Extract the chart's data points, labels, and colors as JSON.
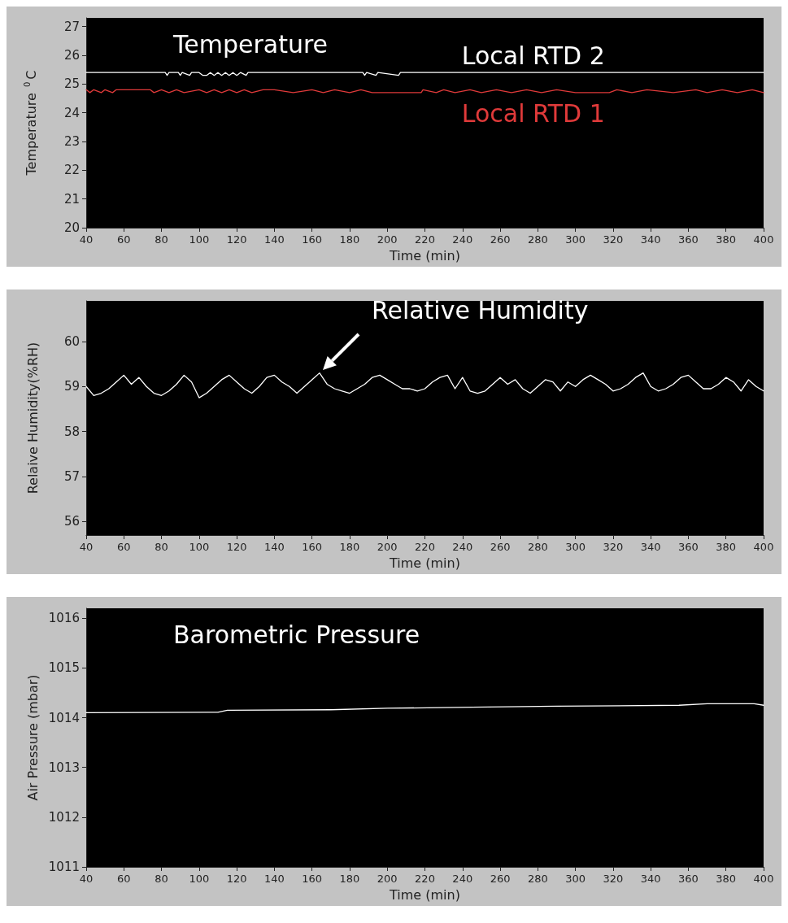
{
  "chart_data": [
    {
      "type": "line",
      "title": "Temperature",
      "xlabel": "Time (min)",
      "ylabel": "Temperature $^{0}$C",
      "xlim": [
        40,
        400
      ],
      "xticks": [
        40,
        60,
        80,
        100,
        120,
        140,
        160,
        180,
        200,
        220,
        240,
        260,
        280,
        300,
        320,
        340,
        360,
        380,
        400
      ],
      "ylim": [
        20,
        27.3
      ],
      "yticks": [
        20,
        21,
        22,
        23,
        24,
        25,
        26,
        27
      ],
      "grid": false,
      "legend": false,
      "series": [
        {
          "name": "Local RTD 2",
          "color": "#ffffff",
          "x": [
            40,
            82,
            83,
            84,
            89,
            90,
            91,
            95,
            96,
            100,
            102,
            104,
            106,
            108,
            110,
            112,
            114,
            116,
            118,
            120,
            122,
            125,
            126,
            187,
            188,
            189,
            194,
            195,
            206,
            207,
            400
          ],
          "values": [
            25.4,
            25.4,
            25.3,
            25.4,
            25.4,
            25.3,
            25.4,
            25.3,
            25.4,
            25.4,
            25.3,
            25.3,
            25.4,
            25.3,
            25.4,
            25.3,
            25.4,
            25.3,
            25.4,
            25.3,
            25.4,
            25.3,
            25.4,
            25.4,
            25.3,
            25.4,
            25.3,
            25.4,
            25.3,
            25.4,
            25.4
          ]
        },
        {
          "name": "Local RTD 1",
          "color": "#e03a3a",
          "x": [
            40,
            42,
            44,
            48,
            50,
            54,
            56,
            74,
            76,
            80,
            84,
            88,
            92,
            100,
            104,
            108,
            112,
            116,
            120,
            124,
            128,
            134,
            140,
            150,
            160,
            166,
            172,
            180,
            186,
            192,
            197,
            218,
            219,
            226,
            230,
            236,
            244,
            250,
            258,
            266,
            274,
            282,
            290,
            300,
            306,
            318,
            322,
            330,
            338,
            352,
            364,
            370,
            378,
            386,
            394,
            400
          ],
          "values": [
            24.8,
            24.7,
            24.8,
            24.7,
            24.8,
            24.7,
            24.8,
            24.8,
            24.7,
            24.8,
            24.7,
            24.8,
            24.7,
            24.8,
            24.7,
            24.8,
            24.7,
            24.8,
            24.7,
            24.8,
            24.7,
            24.8,
            24.8,
            24.7,
            24.8,
            24.7,
            24.8,
            24.7,
            24.8,
            24.7,
            24.7,
            24.7,
            24.8,
            24.7,
            24.8,
            24.7,
            24.8,
            24.7,
            24.8,
            24.7,
            24.8,
            24.7,
            24.8,
            24.7,
            24.7,
            24.7,
            24.8,
            24.7,
            24.8,
            24.7,
            24.8,
            24.7,
            24.8,
            24.7,
            24.8,
            24.7
          ]
        }
      ]
    },
    {
      "type": "line",
      "xlabel": "Time (min)",
      "ylabel": "Relaive Humidity(%RH)",
      "xlim": [
        40,
        400
      ],
      "xticks": [
        40,
        60,
        80,
        100,
        120,
        140,
        160,
        180,
        200,
        220,
        240,
        260,
        280,
        300,
        320,
        340,
        360,
        380,
        400
      ],
      "ylim": [
        55.7,
        60.9
      ],
      "yticks": [
        56,
        57,
        58,
        59,
        60
      ],
      "grid": false,
      "legend": false,
      "annotations": [
        {
          "text": "Relative Humidity",
          "x": 164,
          "y": 59.3
        }
      ],
      "series": [
        {
          "color": "#ffffff",
          "x": [
            40,
            44,
            48,
            52,
            56,
            60,
            64,
            68,
            72,
            76,
            80,
            84,
            88,
            92,
            96,
            100,
            104,
            108,
            112,
            116,
            120,
            124,
            128,
            132,
            136,
            140,
            144,
            148,
            152,
            156,
            160,
            164,
            168,
            172,
            176,
            180,
            184,
            188,
            192,
            196,
            200,
            204,
            208,
            212,
            216,
            220,
            224,
            228,
            232,
            236,
            240,
            244,
            248,
            252,
            256,
            260,
            264,
            268,
            272,
            276,
            280,
            284,
            288,
            292,
            296,
            300,
            304,
            308,
            312,
            316,
            320,
            324,
            328,
            332,
            336,
            340,
            344,
            348,
            352,
            356,
            360,
            364,
            368,
            372,
            376,
            380,
            384,
            388,
            392,
            396,
            400
          ],
          "values": [
            59.0,
            58.8,
            58.85,
            58.95,
            59.1,
            59.25,
            59.05,
            59.2,
            59.0,
            58.85,
            58.8,
            58.9,
            59.05,
            59.25,
            59.1,
            58.75,
            58.85,
            59.0,
            59.15,
            59.25,
            59.1,
            58.95,
            58.85,
            59.0,
            59.2,
            59.25,
            59.1,
            59.0,
            58.85,
            59.0,
            59.15,
            59.3,
            59.05,
            58.95,
            58.9,
            58.85,
            58.95,
            59.05,
            59.2,
            59.25,
            59.15,
            59.05,
            58.95,
            58.95,
            58.9,
            58.95,
            59.1,
            59.2,
            59.25,
            58.95,
            59.2,
            58.9,
            58.85,
            58.9,
            59.05,
            59.2,
            59.05,
            59.15,
            58.95,
            58.85,
            59.0,
            59.15,
            59.1,
            58.9,
            59.1,
            59.0,
            59.15,
            59.25,
            59.15,
            59.05,
            58.9,
            58.95,
            59.05,
            59.2,
            59.3,
            59.0,
            58.9,
            58.95,
            59.05,
            59.2,
            59.25,
            59.1,
            58.95,
            58.95,
            59.05,
            59.2,
            59.1,
            58.9,
            59.15,
            59.0,
            58.9
          ]
        }
      ]
    },
    {
      "type": "line",
      "title": "Barometric Pressure",
      "xlabel": "Time (min)",
      "ylabel": "Air Pressure (mbar)",
      "xlim": [
        40,
        400
      ],
      "xticks": [
        40,
        60,
        80,
        100,
        120,
        140,
        160,
        180,
        200,
        220,
        240,
        260,
        280,
        300,
        320,
        340,
        360,
        380,
        400
      ],
      "ylim": [
        1011,
        1016.2
      ],
      "yticks": [
        1011,
        1012,
        1013,
        1014,
        1015,
        1016
      ],
      "grid": false,
      "legend": false,
      "series": [
        {
          "color": "#ffffff",
          "x": [
            40,
            110,
            115,
            170,
            200,
            245,
            290,
            355,
            370,
            395,
            400
          ],
          "values": [
            1014.1,
            1014.11,
            1014.15,
            1014.16,
            1014.19,
            1014.21,
            1014.23,
            1014.25,
            1014.28,
            1014.28,
            1014.25
          ]
        }
      ]
    }
  ]
}
